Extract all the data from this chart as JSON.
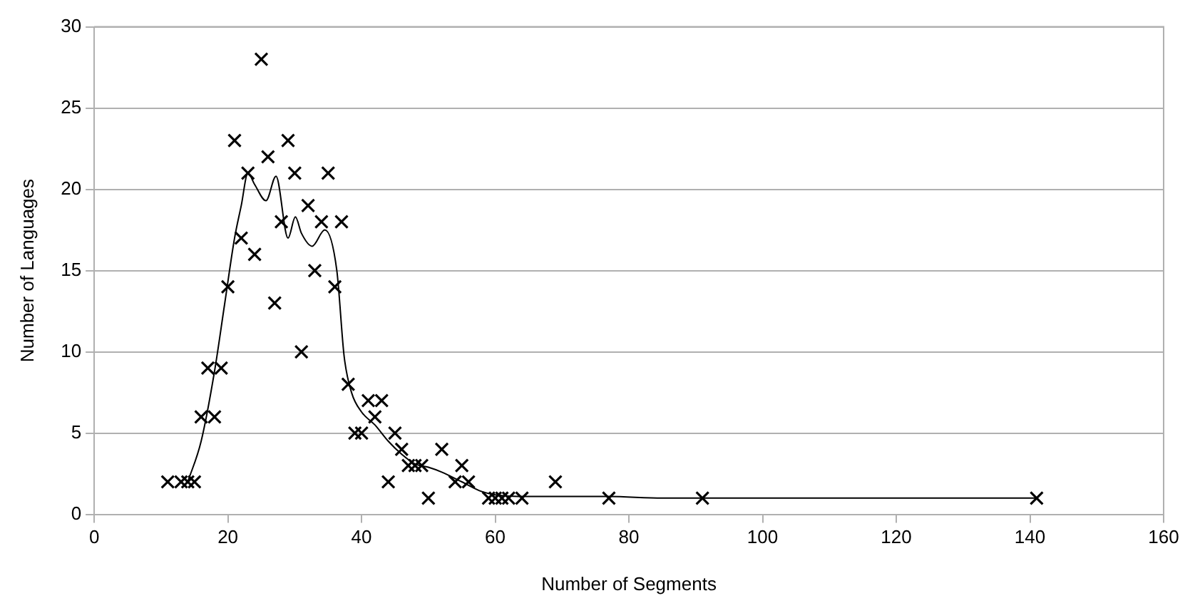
{
  "chart_data": {
    "type": "scatter",
    "xlabel": "Number of Segments",
    "ylabel": "Number of Languages",
    "xlim": [
      0,
      160
    ],
    "xticks": [
      0,
      20,
      40,
      60,
      80,
      100,
      120,
      140,
      160
    ],
    "ylim": [
      0,
      30
    ],
    "yticks": [
      0,
      5,
      10,
      15,
      20,
      25,
      30
    ],
    "grid": "y",
    "legend": false,
    "marker": "cross",
    "series": [
      {
        "type": "scatter",
        "color": "#000000",
        "x": [
          11,
          13,
          14,
          15,
          16,
          17,
          18,
          19,
          20,
          21,
          22,
          23,
          24,
          25,
          26,
          27,
          28,
          29,
          30,
          31,
          32,
          33,
          34,
          35,
          36,
          37,
          38,
          39,
          40,
          41,
          42,
          43,
          44,
          45,
          46,
          47,
          48,
          49,
          50,
          52,
          54,
          55,
          56,
          59,
          60,
          61,
          62,
          64,
          69,
          77,
          91,
          141
        ],
        "values": [
          2,
          2,
          2,
          2,
          6,
          9,
          6,
          9,
          14,
          23,
          17,
          21,
          16,
          28,
          22,
          13,
          18,
          23,
          21,
          10,
          19,
          15,
          18,
          21,
          14,
          18,
          8,
          5,
          5,
          7,
          6,
          7,
          2,
          5,
          4,
          3,
          3,
          3,
          1,
          4,
          2,
          3,
          2,
          1,
          1,
          1,
          1,
          1,
          2,
          1,
          1,
          1
        ]
      },
      {
        "type": "line",
        "color": "#000000",
        "marker": "none",
        "x": [
          14,
          16,
          18,
          19.5,
          21,
          22,
          23,
          24,
          25.7,
          27.2,
          29,
          30.1,
          31,
          32.6,
          34.5,
          36.3,
          37.4,
          38.5,
          40,
          42,
          44,
          46,
          48,
          50,
          52,
          55,
          58,
          60,
          65,
          70,
          77,
          85,
          91,
          110,
          141
        ],
        "values": [
          2,
          4.5,
          8.8,
          12.9,
          17,
          19,
          21,
          20.3,
          19.3,
          20.8,
          17,
          18.3,
          17.3,
          16.5,
          17.5,
          15,
          9.7,
          7.5,
          6.3,
          5.5,
          4.5,
          3.7,
          3.1,
          2.9,
          2.6,
          2,
          1.4,
          1.2,
          1.1,
          1.1,
          1.1,
          1,
          1,
          1,
          1
        ]
      }
    ]
  }
}
